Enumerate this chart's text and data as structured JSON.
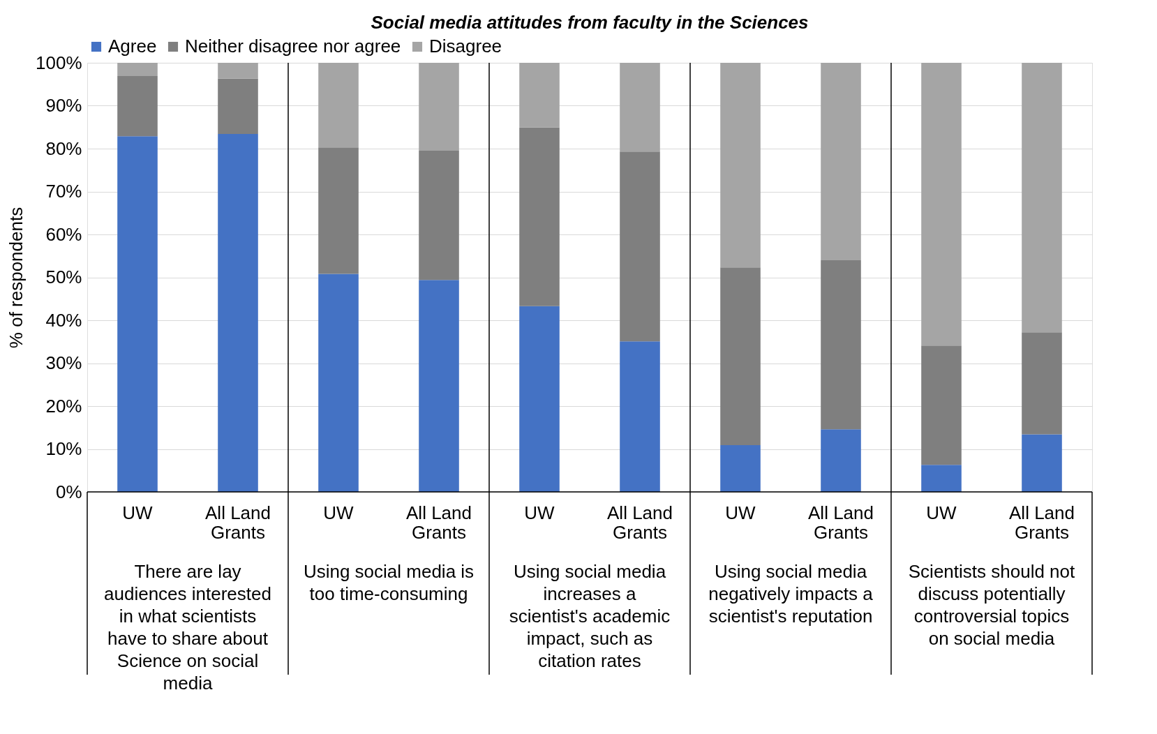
{
  "chart_data": {
    "type": "bar",
    "stacked": true,
    "title": "Social media attitudes from faculty in the Sciences",
    "ylabel": "% of respondents",
    "categories": [
      "UW",
      "All Land Grants",
      "UW",
      "All Land Grants",
      "UW",
      "All Land Grants",
      "UW",
      "All Land Grants",
      "UW",
      "All Land Grants"
    ],
    "series": [
      {
        "name": "Agree",
        "color": "#4472c4",
        "values": [
          82.9,
          83.4,
          50.8,
          49.4,
          43.3,
          35.1,
          10.9,
          14.6,
          6.3,
          13.4
        ]
      },
      {
        "name": "Neither disagree nor agree",
        "color": "#7f7f7f",
        "values": [
          14.0,
          12.9,
          29.5,
          30.1,
          41.6,
          44.2,
          41.4,
          39.4,
          27.8,
          23.8
        ]
      },
      {
        "name": "Disagree",
        "color": "#a5a5a5",
        "values": [
          3.1,
          3.7,
          19.7,
          20.5,
          15.1,
          20.7,
          47.7,
          46.0,
          65.9,
          62.8
        ]
      }
    ],
    "annotations": [
      "There are lay audiences interested in what scientists have to share about Science on social media",
      "Using social media is too time-consuming",
      "Using social media increases a scientist's academic impact, such as citation rates",
      "Using social media negatively impacts a scientist's reputation",
      "Scientists should not discuss potentially controversial topics on social media"
    ],
    "ylim": [
      0,
      100
    ],
    "yticks": [
      {
        "value": 0,
        "label": "0%"
      },
      {
        "value": 10,
        "label": "10%"
      },
      {
        "value": 20,
        "label": "20%"
      },
      {
        "value": 30,
        "label": "30%"
      },
      {
        "value": 40,
        "label": "40%"
      },
      {
        "value": 50,
        "label": "50%"
      },
      {
        "value": 60,
        "label": "60%"
      },
      {
        "value": 70,
        "label": "70%"
      },
      {
        "value": 80,
        "label": "80%"
      },
      {
        "value": 90,
        "label": "90%"
      },
      {
        "value": 100,
        "label": "100%"
      }
    ],
    "grid": "y",
    "legend": "top"
  }
}
